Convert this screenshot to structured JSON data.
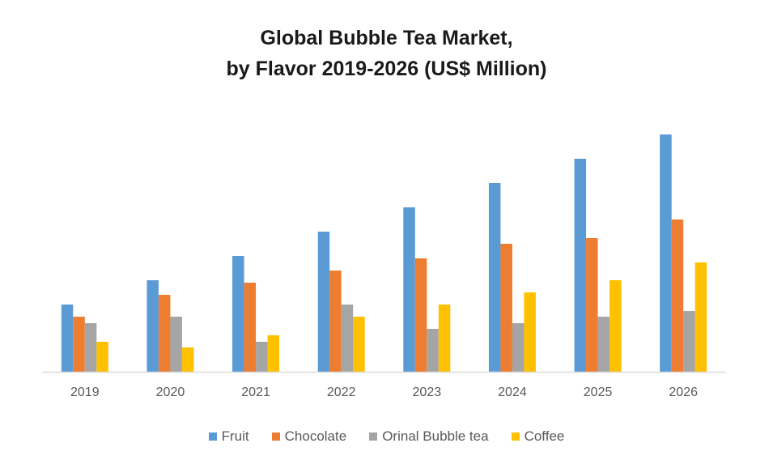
{
  "chart_data": {
    "type": "bar",
    "title": "Global Bubble Tea Market,",
    "subtitle": "by Flavor 2019-2026 (US$ Million)",
    "title_lines": [
      "Global Bubble Tea Market,",
      "by Flavor 2019-2026 (US$ Million)"
    ],
    "xlabel": "",
    "ylabel": "",
    "categories": [
      "2019",
      "2020",
      "2021",
      "2022",
      "2023",
      "2024",
      "2025",
      "2026"
    ],
    "series": [
      {
        "name": "Fruit",
        "color": "#5B9BD5",
        "values": [
          83,
          113,
          143,
          173,
          203,
          233,
          263,
          293
        ]
      },
      {
        "name": "Chocolate",
        "color": "#ED7D31",
        "values": [
          68,
          95,
          110,
          125,
          140,
          158,
          165,
          188
        ]
      },
      {
        "name": "Orinal Bubble tea",
        "color": "#A5A5A5",
        "values": [
          60,
          68,
          37,
          83,
          53,
          60,
          68,
          75
        ]
      },
      {
        "name": "Coffee",
        "color": "#FFC000",
        "values": [
          37,
          30,
          45,
          68,
          83,
          98,
          113,
          135
        ]
      }
    ],
    "ylim": [
      0,
      300
    ],
    "y_axis_visible": false,
    "grid": false,
    "legend_position": "bottom",
    "values_note": "relative estimates; no y-axis scale shown"
  }
}
